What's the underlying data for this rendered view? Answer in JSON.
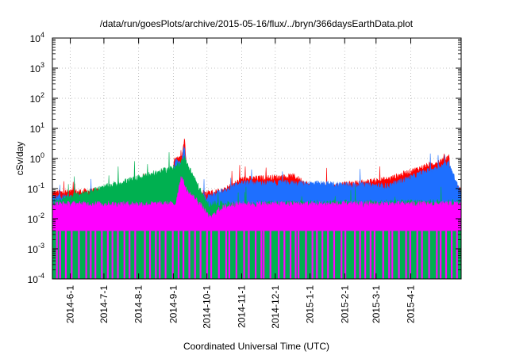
{
  "chart_data": {
    "type": "area",
    "title": "/data/run/goesPlots/archive/2015-05-16/flux/../bryn/366daysEarthData.plot",
    "xlabel": "Coordinated Universal Time (UTC)",
    "ylabel": "cSv/day",
    "x_range": [
      "2014-05-16",
      "2015-05-16"
    ],
    "ylim": [
      0.0001,
      10000
    ],
    "yscale": "log",
    "grid": true,
    "x_tick_labels": [
      "2014-6-1",
      "2014-7-1",
      "2014-8-1",
      "2014-9-1",
      "2014-10-1",
      "2014-11-1",
      "2014-12-1",
      "2015-1-1",
      "2015-2-1",
      "2015-3-1",
      "2015-4-1"
    ],
    "y_ticks": [
      {
        "base": "10",
        "exp": "-4",
        "value": 0.0001
      },
      {
        "base": "10",
        "exp": "-3",
        "value": 0.001
      },
      {
        "base": "10",
        "exp": "-2",
        "value": 0.01
      },
      {
        "base": "10",
        "exp": "-1",
        "value": 0.1
      },
      {
        "base": "10",
        "exp": "0",
        "value": 1
      },
      {
        "base": "10",
        "exp": "1",
        "value": 10
      },
      {
        "base": "10",
        "exp": "2",
        "value": 100
      },
      {
        "base": "10",
        "exp": "3",
        "value": 1000
      },
      {
        "base": "10",
        "exp": "4",
        "value": 10000
      }
    ],
    "series": [
      {
        "color": "#ff0000",
        "baseline": 0.075,
        "x": [
          "2014-05-16",
          "2014-06-20",
          "2014-08-28",
          "2014-09-03",
          "2014-09-08",
          "2014-09-11",
          "2014-09-13",
          "2014-09-20",
          "2014-10-01",
          "2014-10-15",
          "2014-11-01",
          "2014-12-18",
          "2015-01-05",
          "2015-03-12",
          "2015-05-05",
          "2015-05-08",
          "2015-05-16"
        ],
        "y": [
          0.07,
          0.08,
          0.09,
          1.2,
          0.9,
          5.0,
          0.3,
          0.08,
          0.07,
          0.08,
          0.2,
          0.25,
          0.1,
          0.2,
          1.0,
          0.15,
          0.08
        ]
      },
      {
        "color": "#1e6fff",
        "baseline": 0.05,
        "x": [
          "2014-05-16",
          "2014-08-28",
          "2014-09-03",
          "2014-09-08",
          "2014-09-11",
          "2014-09-13",
          "2014-09-20",
          "2014-10-01",
          "2014-11-01",
          "2014-12-18",
          "2015-03-12",
          "2015-05-05",
          "2015-05-16"
        ],
        "y": [
          0.05,
          0.06,
          0.8,
          0.6,
          3.0,
          0.2,
          0.06,
          0.05,
          0.15,
          0.15,
          0.12,
          0.7,
          0.06
        ]
      },
      {
        "color": "#00b050",
        "baseline": 0.035,
        "x": [
          "2014-05-16",
          "2014-09-03",
          "2014-09-11",
          "2014-10-01",
          "2015-05-16"
        ],
        "y": [
          0.035,
          0.5,
          1.0,
          0.03,
          0.035
        ]
      },
      {
        "color": "#ff00ff",
        "baseline": 0.03,
        "x": [
          "2014-05-16",
          "2014-09-03",
          "2014-09-08",
          "2014-09-13",
          "2014-09-22",
          "2014-10-04",
          "2014-10-12",
          "2014-10-25",
          "2015-05-16"
        ],
        "y": [
          0.03,
          0.03,
          0.25,
          0.08,
          0.04,
          0.01,
          0.02,
          0.03,
          0.03
        ],
        "floor": 0.004,
        "dropouts_to": 0.0001
      }
    ]
  }
}
